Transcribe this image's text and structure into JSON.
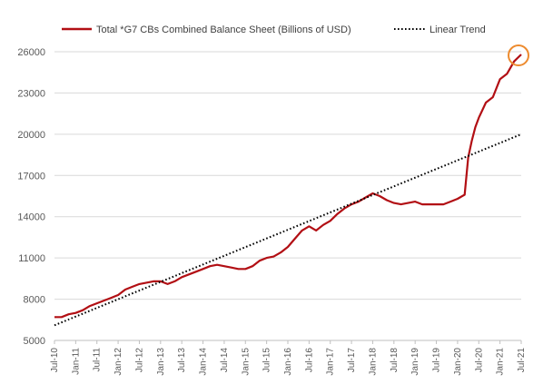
{
  "colors": {
    "series_line": "#b20f14",
    "trend_line": "#000000",
    "grid": "#d9d9d9",
    "axis": "#bfbfbf",
    "highlight_circle": "#ed8b2f"
  },
  "chart_data": {
    "type": "line",
    "title": "",
    "xlabel": "",
    "ylabel": "",
    "ylim": [
      5000,
      26000
    ],
    "yticks": [
      5000,
      8000,
      11000,
      14000,
      17000,
      20000,
      23000,
      26000
    ],
    "grid": true,
    "legend_position": "top",
    "x_start": "Jul-10",
    "x_end": "Jul-21",
    "x_tick_labels": [
      "Jul-10",
      "Jan-11",
      "Jul-11",
      "Jan-12",
      "Jul-12",
      "Jan-13",
      "Jul-13",
      "Jan-14",
      "Jul-14",
      "Jan-15",
      "Jul-15",
      "Jan-16",
      "Jul-16",
      "Jan-17",
      "Jul-17",
      "Jan-18",
      "Jul-18",
      "Jan-19",
      "Jul-19",
      "Jan-20",
      "Jul-20",
      "Jan-21",
      "Jul-21"
    ],
    "series": [
      {
        "name": "Total *G7 CBs Combined Balance Sheet (Billions of USD)",
        "style": "solid",
        "points": [
          {
            "x": "Jul-10",
            "y": 6700
          },
          {
            "x": "Sep-10",
            "y": 6700
          },
          {
            "x": "Nov-10",
            "y": 6900
          },
          {
            "x": "Jan-11",
            "y": 7000
          },
          {
            "x": "Mar-11",
            "y": 7200
          },
          {
            "x": "May-11",
            "y": 7500
          },
          {
            "x": "Jul-11",
            "y": 7700
          },
          {
            "x": "Sep-11",
            "y": 7900
          },
          {
            "x": "Nov-11",
            "y": 8100
          },
          {
            "x": "Jan-12",
            "y": 8300
          },
          {
            "x": "Mar-12",
            "y": 8700
          },
          {
            "x": "May-12",
            "y": 8900
          },
          {
            "x": "Jul-12",
            "y": 9100
          },
          {
            "x": "Sep-12",
            "y": 9200
          },
          {
            "x": "Nov-12",
            "y": 9300
          },
          {
            "x": "Jan-13",
            "y": 9300
          },
          {
            "x": "Mar-13",
            "y": 9100
          },
          {
            "x": "May-13",
            "y": 9300
          },
          {
            "x": "Jul-13",
            "y": 9600
          },
          {
            "x": "Sep-13",
            "y": 9800
          },
          {
            "x": "Nov-13",
            "y": 10000
          },
          {
            "x": "Jan-14",
            "y": 10200
          },
          {
            "x": "Mar-14",
            "y": 10400
          },
          {
            "x": "May-14",
            "y": 10500
          },
          {
            "x": "Jul-14",
            "y": 10400
          },
          {
            "x": "Sep-14",
            "y": 10300
          },
          {
            "x": "Nov-14",
            "y": 10200
          },
          {
            "x": "Jan-15",
            "y": 10200
          },
          {
            "x": "Mar-15",
            "y": 10400
          },
          {
            "x": "May-15",
            "y": 10800
          },
          {
            "x": "Jul-15",
            "y": 11000
          },
          {
            "x": "Sep-15",
            "y": 11100
          },
          {
            "x": "Nov-15",
            "y": 11400
          },
          {
            "x": "Jan-16",
            "y": 11800
          },
          {
            "x": "Mar-16",
            "y": 12400
          },
          {
            "x": "May-16",
            "y": 13000
          },
          {
            "x": "Jul-16",
            "y": 13300
          },
          {
            "x": "Sep-16",
            "y": 13000
          },
          {
            "x": "Nov-16",
            "y": 13400
          },
          {
            "x": "Jan-17",
            "y": 13700
          },
          {
            "x": "Mar-17",
            "y": 14200
          },
          {
            "x": "May-17",
            "y": 14600
          },
          {
            "x": "Jul-17",
            "y": 14900
          },
          {
            "x": "Sep-17",
            "y": 15100
          },
          {
            "x": "Nov-17",
            "y": 15400
          },
          {
            "x": "Jan-18",
            "y": 15700
          },
          {
            "x": "Mar-18",
            "y": 15500
          },
          {
            "x": "May-18",
            "y": 15200
          },
          {
            "x": "Jul-18",
            "y": 15000
          },
          {
            "x": "Sep-18",
            "y": 14900
          },
          {
            "x": "Nov-18",
            "y": 15000
          },
          {
            "x": "Jan-19",
            "y": 15100
          },
          {
            "x": "Mar-19",
            "y": 14900
          },
          {
            "x": "May-19",
            "y": 14900
          },
          {
            "x": "Jul-19",
            "y": 14900
          },
          {
            "x": "Sep-19",
            "y": 14900
          },
          {
            "x": "Nov-19",
            "y": 15100
          },
          {
            "x": "Jan-20",
            "y": 15300
          },
          {
            "x": "Mar-20",
            "y": 15600
          },
          {
            "x": "Apr-20",
            "y": 18300
          },
          {
            "x": "May-20",
            "y": 19500
          },
          {
            "x": "Jun-20",
            "y": 20500
          },
          {
            "x": "Jul-20",
            "y": 21200
          },
          {
            "x": "Sep-20",
            "y": 22300
          },
          {
            "x": "Nov-20",
            "y": 22700
          },
          {
            "x": "Jan-21",
            "y": 24000
          },
          {
            "x": "Mar-21",
            "y": 24400
          },
          {
            "x": "May-21",
            "y": 25300
          },
          {
            "x": "Jul-21",
            "y": 25800
          }
        ]
      },
      {
        "name": "Linear Trend",
        "style": "dotted",
        "points": [
          {
            "x": "Jul-10",
            "y": 6100
          },
          {
            "x": "Jul-21",
            "y": 20000
          }
        ]
      }
    ],
    "annotations": [
      {
        "type": "circle",
        "target": "last-point-of-series-1"
      }
    ]
  }
}
